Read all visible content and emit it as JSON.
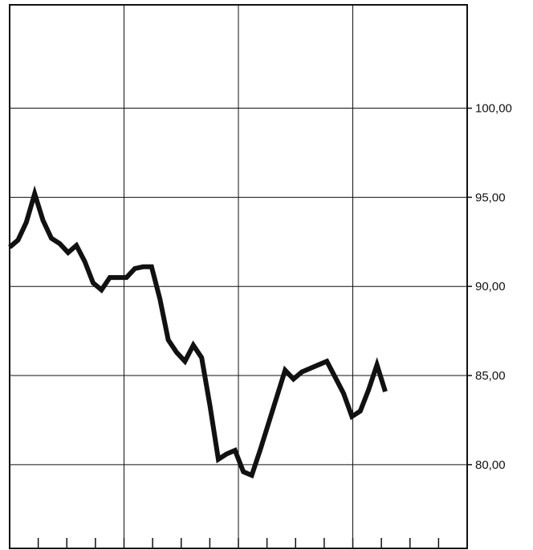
{
  "chart_data": {
    "type": "line",
    "title": "",
    "xlabel": "",
    "ylabel": "",
    "ylim": [
      75.3,
      105.8
    ],
    "yticks": [
      80,
      85,
      90,
      95,
      100
    ],
    "ytick_labels": [
      "80,00",
      "85,00",
      "90,00",
      "95,00",
      "100,00"
    ],
    "grid": true,
    "x_minor_tick_count": 16,
    "colors": {
      "line": "#111111",
      "grid": "#111111",
      "background": "#ffffff"
    },
    "series": [
      {
        "values": [
          92.2,
          92.6,
          93.6,
          95.2,
          93.7,
          92.7,
          92.4,
          91.9,
          92.3,
          91.4,
          90.2,
          89.8,
          90.5,
          90.5,
          90.5,
          91.0,
          91.1,
          91.1,
          89.3,
          87.0,
          86.3,
          85.8,
          86.7,
          86.0,
          83.3,
          80.3,
          80.6,
          80.8,
          79.6,
          79.4,
          80.8,
          82.3,
          83.8,
          85.3,
          84.8,
          85.2,
          85.4,
          85.6,
          85.8,
          84.9,
          84.0,
          82.7,
          83.0,
          84.2,
          85.6,
          84.1
        ]
      }
    ]
  }
}
